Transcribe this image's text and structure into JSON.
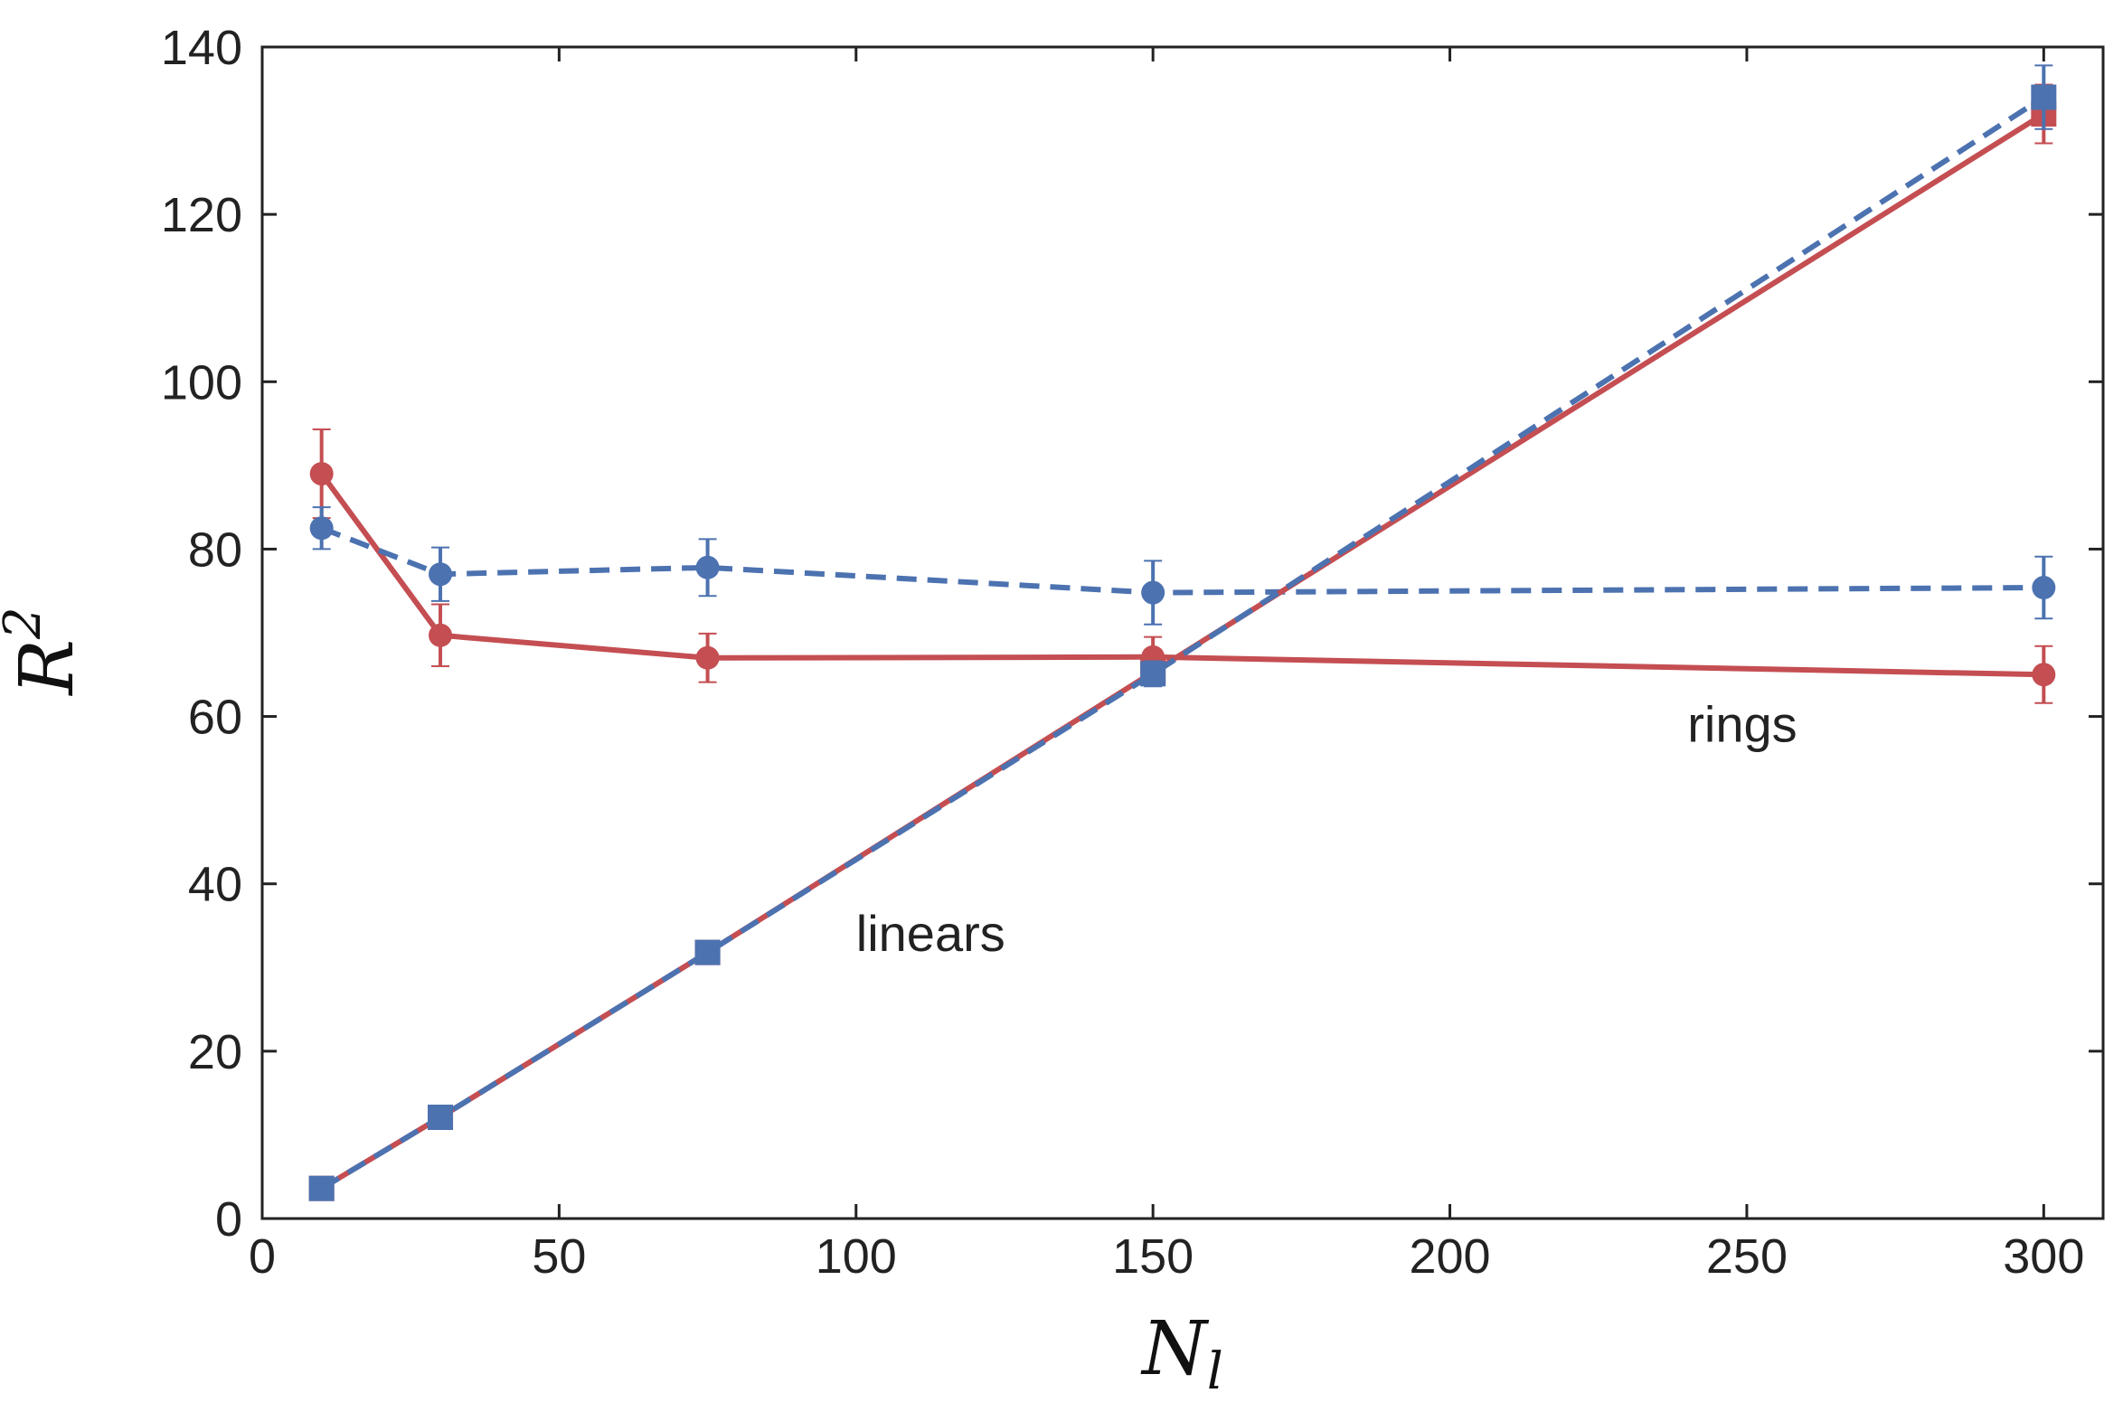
{
  "chart_data": {
    "type": "line",
    "title": "",
    "xlabel": "N",
    "xlabel_sub": "l",
    "ylabel": "R",
    "ylabel_sup": "2",
    "xlim": [
      0,
      310
    ],
    "ylim": [
      0,
      140
    ],
    "xticks": [
      0,
      50,
      100,
      150,
      200,
      250,
      300
    ],
    "yticks": [
      0,
      20,
      40,
      60,
      80,
      100,
      120,
      140
    ],
    "grid": false,
    "colors": {
      "red": "#c44e52",
      "blue": "#4c72b0"
    },
    "annotations": [
      {
        "text": "rings",
        "x": 240,
        "y": 57
      },
      {
        "text": "linears",
        "x": 100,
        "y": 32
      }
    ],
    "series": [
      {
        "name": "rings-red",
        "color": "#c44e52",
        "linestyle": "solid",
        "marker": "circle",
        "x": [
          10,
          30,
          75,
          150,
          300
        ],
        "y": [
          89,
          69.7,
          67,
          67.1,
          65
        ],
        "err": [
          5.3,
          3.7,
          2.9,
          2.4,
          3.4
        ]
      },
      {
        "name": "rings-blue",
        "color": "#4c72b0",
        "linestyle": "dashed",
        "marker": "circle",
        "x": [
          10,
          30,
          75,
          150,
          300
        ],
        "y": [
          82.5,
          77,
          77.8,
          74.8,
          75.4
        ],
        "err": [
          2.5,
          3.2,
          3.4,
          3.8,
          3.7
        ]
      },
      {
        "name": "linears-red",
        "color": "#c44e52",
        "linestyle": "solid",
        "marker": "square",
        "x": [
          10,
          30,
          75,
          150,
          300
        ],
        "y": [
          3.6,
          12.1,
          31.8,
          65.3,
          132
        ],
        "err": [
          0.3,
          0.6,
          1.2,
          1.5,
          3.5
        ]
      },
      {
        "name": "linears-blue",
        "color": "#4c72b0",
        "linestyle": "dashed",
        "marker": "square",
        "x": [
          10,
          30,
          75,
          150,
          300
        ],
        "y": [
          3.6,
          12.1,
          31.8,
          65.1,
          134
        ],
        "err": [
          0.3,
          0.6,
          1.2,
          1.5,
          3.8
        ]
      }
    ]
  }
}
